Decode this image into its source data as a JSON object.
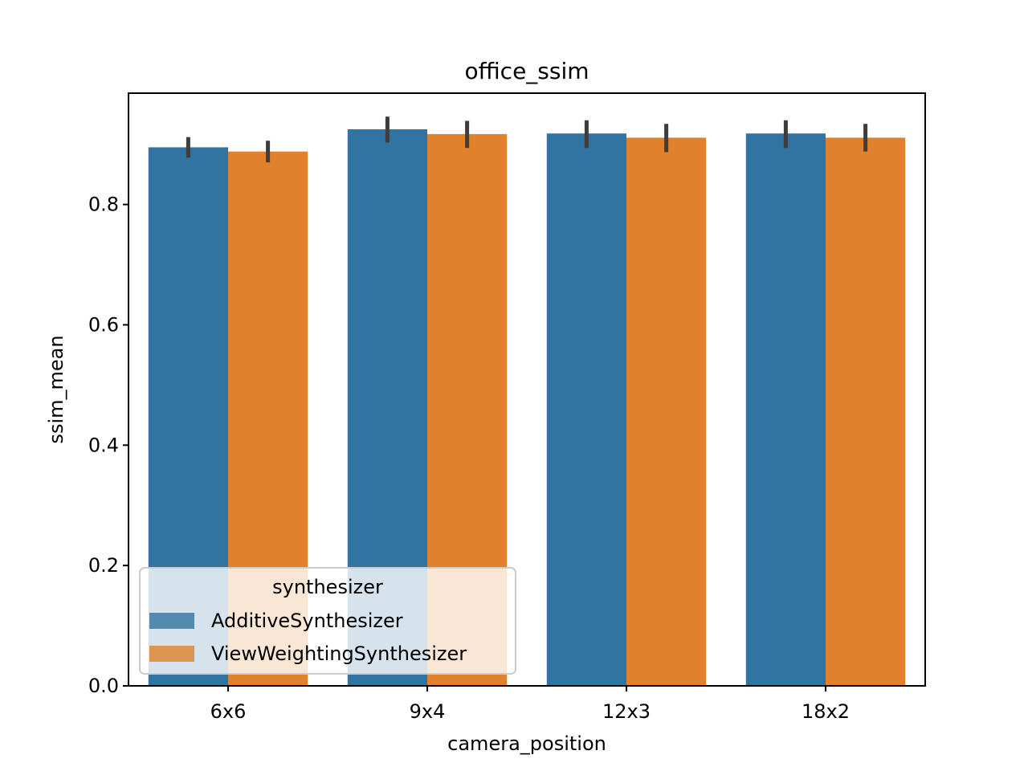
{
  "chart_data": {
    "type": "bar",
    "title": "office_ssim",
    "xlabel": "camera_position",
    "ylabel": "ssim_mean",
    "categories": [
      "6x6",
      "9x4",
      "12x3",
      "18x2"
    ],
    "ylim": [
      0,
      0.985
    ],
    "yticks": [
      0.0,
      0.2,
      0.4,
      0.6,
      0.8
    ],
    "ytick_labels": [
      "0.0",
      "0.2",
      "0.4",
      "0.6",
      "0.8"
    ],
    "grid": false,
    "legend": {
      "title": "synthesizer",
      "placement": "lower-left"
    },
    "series": [
      {
        "name": "AdditiveSynthesizer",
        "color": "#3274a1",
        "values": [
          0.895,
          0.925,
          0.918,
          0.918
        ],
        "error_low": [
          0.878,
          0.903,
          0.894,
          0.894
        ],
        "error_high": [
          0.912,
          0.946,
          0.94,
          0.94
        ]
      },
      {
        "name": "ViewWeightingSynthesizer",
        "color": "#e1812c",
        "values": [
          0.888,
          0.917,
          0.911,
          0.911
        ],
        "error_low": [
          0.87,
          0.894,
          0.887,
          0.888
        ],
        "error_high": [
          0.906,
          0.939,
          0.934,
          0.934
        ]
      }
    ],
    "errorbar_color": "#3d3d3d"
  }
}
